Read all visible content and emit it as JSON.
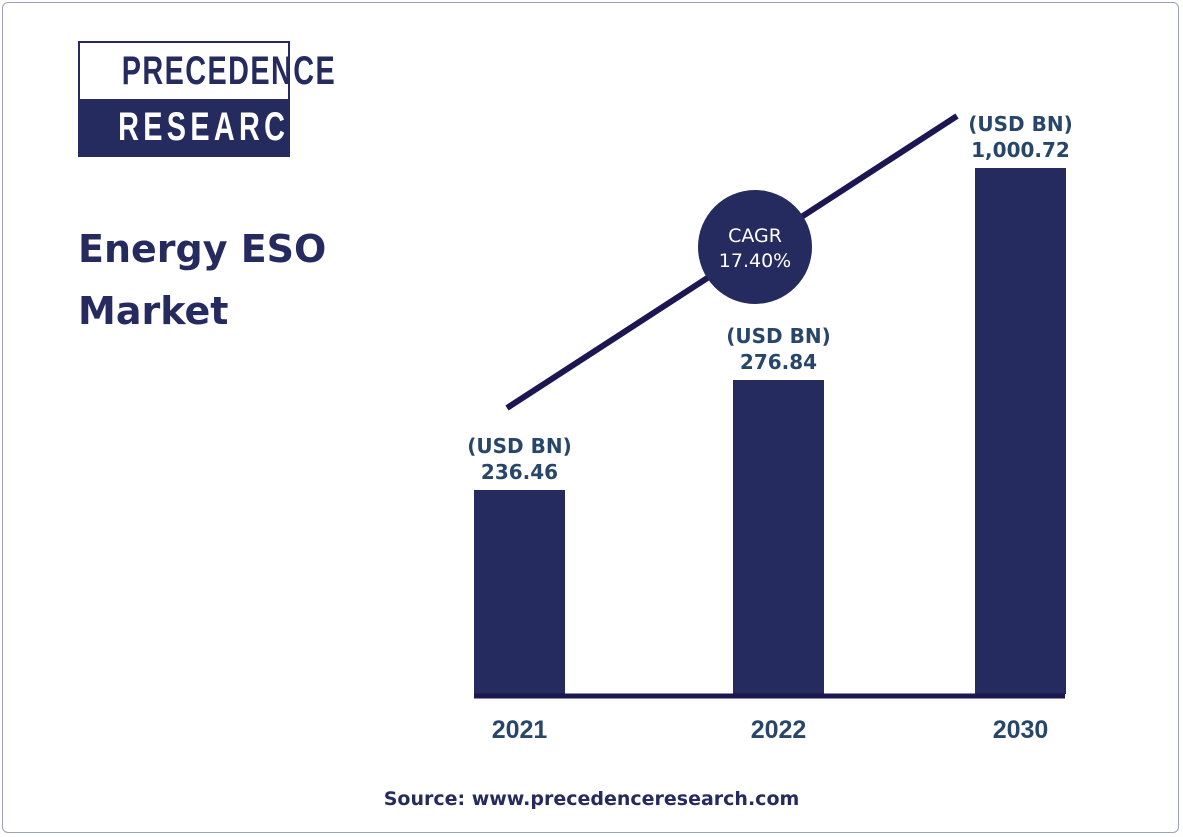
{
  "logo": {
    "line1": "PRECEDENCE",
    "line2": "RESEARCH"
  },
  "title": "Energy ESO Market",
  "source": "Source: www.precedenceresearch.com",
  "colors": {
    "bar": "#252b5e",
    "trend_line": "#1c1652",
    "label": "#27466a",
    "circle": "#252b5e"
  },
  "chart_data": {
    "type": "bar",
    "title": "Energy ESO Market",
    "categories": [
      "2021",
      "2022",
      "2030"
    ],
    "values": [
      236.46,
      276.84,
      1000.72
    ],
    "value_labels": [
      "236.46",
      "276.84",
      "1,000.72"
    ],
    "unit_label": "(USD BN)",
    "annotation": {
      "line1": "CAGR",
      "line2": "17.40%"
    },
    "grid": false,
    "legend": "none"
  }
}
